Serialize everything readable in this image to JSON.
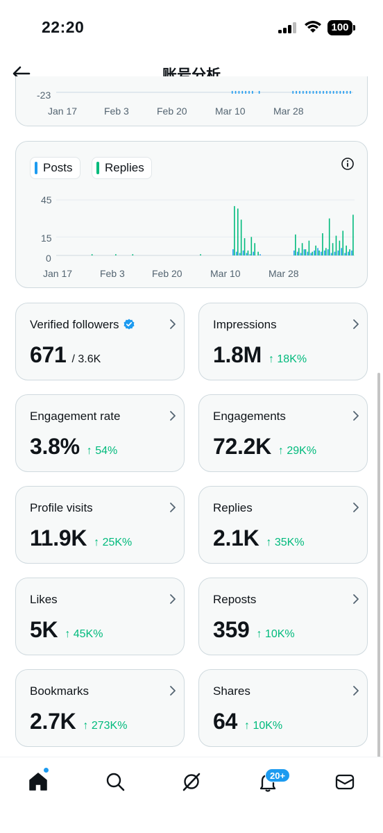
{
  "status_bar": {
    "time": "22:20",
    "battery": "100"
  },
  "header": {
    "title": "账号分析"
  },
  "chart_top": {
    "y_tick": "-23",
    "x_ticks": [
      "Jan 17",
      "Feb 3",
      "Feb 20",
      "Mar 10",
      "Mar 28"
    ]
  },
  "chart_data": {
    "type": "bar",
    "legend": [
      "Posts",
      "Replies"
    ],
    "colors": {
      "Posts": "#1d9bf0",
      "Replies": "#00ba7c"
    },
    "y_ticks": [
      "45",
      "15",
      "0"
    ],
    "ylim": [
      0,
      45
    ],
    "x_ticks": [
      "Jan 17",
      "Feb 3",
      "Feb 20",
      "Mar 10",
      "Mar 28"
    ],
    "x": [
      "Jan 17",
      "Jan 18",
      "Jan 19",
      "Jan 20",
      "Jan 21",
      "Jan 22",
      "Jan 23",
      "Jan 24",
      "Jan 25",
      "Jan 26",
      "Jan 27",
      "Jan 28",
      "Jan 29",
      "Jan 30",
      "Jan 31",
      "Feb 1",
      "Feb 2",
      "Feb 3",
      "Feb 4",
      "Feb 5",
      "Feb 6",
      "Feb 7",
      "Feb 8",
      "Feb 9",
      "Feb 10",
      "Feb 11",
      "Feb 12",
      "Feb 13",
      "Feb 14",
      "Feb 15",
      "Feb 16",
      "Feb 17",
      "Feb 18",
      "Feb 19",
      "Feb 20",
      "Feb 21",
      "Feb 22",
      "Feb 23",
      "Feb 24",
      "Feb 25",
      "Feb 26",
      "Feb 27",
      "Feb 28",
      "Mar 1",
      "Mar 2",
      "Mar 3",
      "Mar 4",
      "Mar 5",
      "Mar 6",
      "Mar 7",
      "Mar 8",
      "Mar 9",
      "Mar 10",
      "Mar 11",
      "Mar 12",
      "Mar 13",
      "Mar 14",
      "Mar 15",
      "Mar 16",
      "Mar 17",
      "Mar 18",
      "Mar 19",
      "Mar 20",
      "Mar 21",
      "Mar 22",
      "Mar 23",
      "Mar 24",
      "Mar 25",
      "Mar 26",
      "Mar 27",
      "Mar 28",
      "Mar 29",
      "Mar 30",
      "Mar 31",
      "Apr 1",
      "Apr 2",
      "Apr 3",
      "Apr 4",
      "Apr 5",
      "Apr 6",
      "Apr 7",
      "Apr 8",
      "Apr 9",
      "Apr 10",
      "Apr 11",
      "Apr 12",
      "Apr 13",
      "Apr 14"
    ],
    "series": [
      {
        "name": "Posts",
        "values": [
          0,
          0,
          0,
          0,
          0,
          0,
          0,
          0,
          0,
          0,
          0,
          0,
          0,
          0,
          0,
          0,
          0,
          0,
          0,
          0,
          0,
          0,
          0,
          0,
          0,
          0,
          0,
          0,
          0,
          0,
          0,
          0,
          0,
          0,
          0,
          0,
          0,
          0,
          0,
          0,
          0,
          0,
          0,
          0,
          0,
          0,
          0,
          0,
          0,
          0,
          0,
          0,
          5,
          3,
          2,
          4,
          2,
          1,
          3,
          0,
          1,
          0,
          0,
          0,
          0,
          0,
          0,
          0,
          0,
          0,
          4,
          3,
          2,
          5,
          3,
          2,
          4,
          6,
          3,
          4,
          5,
          2,
          3,
          4,
          6,
          2,
          3,
          4
        ]
      },
      {
        "name": "Replies",
        "values": [
          0,
          0,
          0,
          0,
          0,
          0,
          0,
          0,
          0,
          0,
          1,
          0,
          0,
          0,
          0,
          0,
          0,
          1,
          0,
          0,
          0,
          0,
          1,
          0,
          0,
          0,
          0,
          0,
          0,
          0,
          0,
          0,
          0,
          0,
          0,
          0,
          0,
          0,
          0,
          0,
          0,
          0,
          1,
          0,
          0,
          0,
          0,
          0,
          0,
          0,
          0,
          0,
          40,
          38,
          29,
          14,
          4,
          15,
          10,
          3,
          0,
          0,
          0,
          0,
          0,
          0,
          0,
          0,
          0,
          0,
          17,
          6,
          10,
          5,
          12,
          3,
          8,
          4,
          18,
          6,
          30,
          10,
          16,
          12,
          20,
          8,
          5,
          33
        ]
      }
    ]
  },
  "stats": [
    {
      "label": "Verified followers",
      "value": "671",
      "sub": "/ 3.6K",
      "change": ""
    },
    {
      "label": "Impressions",
      "value": "1.8M",
      "sub": "",
      "change": "↑ 18K%"
    },
    {
      "label": "Engagement rate",
      "value": "3.8%",
      "sub": "",
      "change": "↑ 54%"
    },
    {
      "label": "Engagements",
      "value": "72.2K",
      "sub": "",
      "change": "↑ 29K%"
    },
    {
      "label": "Profile visits",
      "value": "11.9K",
      "sub": "",
      "change": "↑ 25K%"
    },
    {
      "label": "Replies",
      "value": "2.1K",
      "sub": "",
      "change": "↑ 35K%"
    },
    {
      "label": "Likes",
      "value": "5K",
      "sub": "",
      "change": "↑ 45K%"
    },
    {
      "label": "Reposts",
      "value": "359",
      "sub": "",
      "change": "↑ 10K%"
    },
    {
      "label": "Bookmarks",
      "value": "2.7K",
      "sub": "",
      "change": "↑ 273K%"
    },
    {
      "label": "Shares",
      "value": "64",
      "sub": "",
      "change": "↑ 10K%"
    }
  ],
  "tabbar": {
    "items": [
      "home-icon",
      "search-icon",
      "grok-icon",
      "notifications-icon",
      "messages-icon"
    ],
    "notification_badge": "20+"
  },
  "colors": {
    "accent": "#1d9bf0",
    "positive": "#00ba7c"
  }
}
